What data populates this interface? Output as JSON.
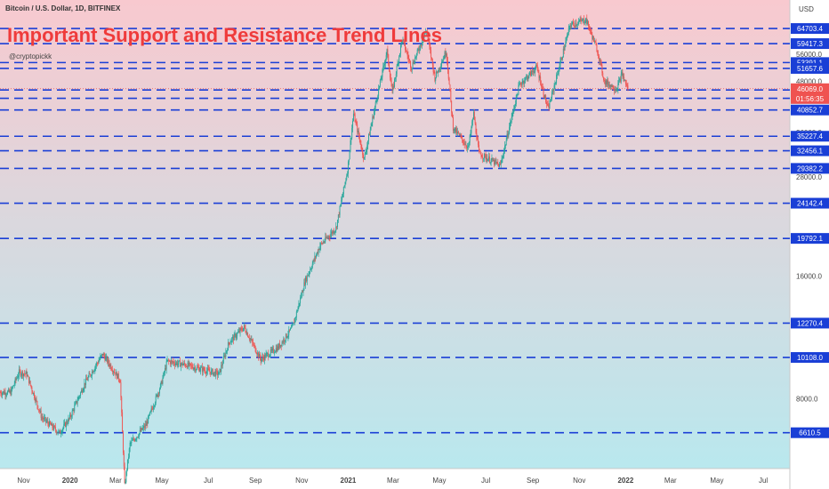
{
  "header": {
    "symbol": "Bitcoin / U.S. Dollar, 1D, BITFINEX",
    "headline": "Important Support and Resistance Trend Lines",
    "author": "@cryptopickk"
  },
  "colors": {
    "bg_top": "#f8c9cf",
    "bg_bottom": "#b9e8ee",
    "level_line": "#1a3fd6",
    "level_label_bg": "#1a3fd6",
    "current_label_bg": "#ef5350",
    "up_candle": "#26a69a",
    "down_candle": "#ef5350",
    "headline": "#ef3b3b"
  },
  "chart_data": {
    "type": "candlestick",
    "title": "Important Support and Resistance Trend Lines",
    "subtitle": "Bitcoin / U.S. Dollar, 1D, BITFINEX",
    "y_axis_unit": "USD",
    "y_scale": "log",
    "y_range": [
      5400,
      76000
    ],
    "x_range": [
      "2019-10-01",
      "2022-08-05"
    ],
    "y_ticks": [
      "64000.0",
      "56000.0",
      "48000.0",
      "36000.0",
      "28000.0",
      "16000.0",
      "8000.0"
    ],
    "y_tick_values": [
      64000,
      56000,
      48000,
      36000,
      28000,
      16000,
      8000
    ],
    "x_ticks": [
      {
        "label": "Nov",
        "date": "2019-11-01"
      },
      {
        "label": "2020",
        "date": "2020-01-01"
      },
      {
        "label": "Mar",
        "date": "2020-03-01"
      },
      {
        "label": "May",
        "date": "2020-05-01"
      },
      {
        "label": "Jul",
        "date": "2020-07-01"
      },
      {
        "label": "Sep",
        "date": "2020-09-01"
      },
      {
        "label": "Nov",
        "date": "2020-11-01"
      },
      {
        "label": "2021",
        "date": "2021-01-01"
      },
      {
        "label": "Mar",
        "date": "2021-03-01"
      },
      {
        "label": "May",
        "date": "2021-05-01"
      },
      {
        "label": "Jul",
        "date": "2021-07-01"
      },
      {
        "label": "Sep",
        "date": "2021-09-01"
      },
      {
        "label": "Nov",
        "date": "2021-11-01"
      },
      {
        "label": "2022",
        "date": "2022-01-01"
      },
      {
        "label": "Mar",
        "date": "2022-03-01"
      },
      {
        "label": "May",
        "date": "2022-05-01"
      },
      {
        "label": "Jul",
        "date": "2022-07-01"
      }
    ],
    "levels": [
      {
        "value": 64703.4,
        "label": "64703.4"
      },
      {
        "value": 59417.3,
        "label": "59417.3"
      },
      {
        "value": 53391.1,
        "label": "53391.1"
      },
      {
        "value": 51657.6,
        "label": "51657.6"
      },
      {
        "value": 45741.8,
        "label": "45741.8"
      },
      {
        "value": 43630.7,
        "label": "43630.7"
      },
      {
        "value": 40852.7,
        "label": "40852.7"
      },
      {
        "value": 35227.4,
        "label": "35227.4"
      },
      {
        "value": 32456.1,
        "label": "32456.1"
      },
      {
        "value": 29382.2,
        "label": "29382.2"
      },
      {
        "value": 24142.4,
        "label": "24142.4"
      },
      {
        "value": 19792.1,
        "label": "19792.1"
      },
      {
        "value": 12270.4,
        "label": "12270.4"
      },
      {
        "value": 10108.0,
        "label": "10108.0"
      },
      {
        "value": 6610.5,
        "label": "6610.5"
      }
    ],
    "current_price": {
      "value": 46069.0,
      "label": "46069.0",
      "countdown": "01:56:35"
    },
    "price_path": [
      [
        "2019-10-01",
        8300
      ],
      [
        "2019-10-15",
        8300
      ],
      [
        "2019-10-26",
        9300
      ],
      [
        "2019-11-05",
        9200
      ],
      [
        "2019-11-25",
        7200
      ],
      [
        "2019-12-18",
        6600
      ],
      [
        "2020-01-01",
        7200
      ],
      [
        "2020-01-20",
        8700
      ],
      [
        "2020-02-13",
        10300
      ],
      [
        "2020-03-07",
        8900
      ],
      [
        "2020-03-13",
        4900
      ],
      [
        "2020-03-20",
        6200
      ],
      [
        "2020-04-10",
        6900
      ],
      [
        "2020-04-30",
        8700
      ],
      [
        "2020-05-08",
        9900
      ],
      [
        "2020-06-01",
        9700
      ],
      [
        "2020-07-15",
        9200
      ],
      [
        "2020-07-28",
        11000
      ],
      [
        "2020-08-17",
        12000
      ],
      [
        "2020-09-08",
        10000
      ],
      [
        "2020-10-01",
        10700
      ],
      [
        "2020-10-20",
        12000
      ],
      [
        "2020-11-05",
        15500
      ],
      [
        "2020-11-25",
        19000
      ],
      [
        "2020-12-16",
        21000
      ],
      [
        "2020-12-31",
        29000
      ],
      [
        "2021-01-08",
        40000
      ],
      [
        "2021-01-22",
        31000
      ],
      [
        "2021-02-08",
        44000
      ],
      [
        "2021-02-21",
        57000
      ],
      [
        "2021-02-28",
        45000
      ],
      [
        "2021-03-13",
        61000
      ],
      [
        "2021-03-25",
        52000
      ],
      [
        "2021-04-14",
        64000
      ],
      [
        "2021-04-25",
        49000
      ],
      [
        "2021-05-10",
        57000
      ],
      [
        "2021-05-19",
        37000
      ],
      [
        "2021-06-08",
        33000
      ],
      [
        "2021-06-15",
        40000
      ],
      [
        "2021-06-22",
        32000
      ],
      [
        "2021-07-20",
        29800
      ],
      [
        "2021-08-14",
        47000
      ],
      [
        "2021-09-06",
        52000
      ],
      [
        "2021-09-21",
        41000
      ],
      [
        "2021-10-20",
        66000
      ],
      [
        "2021-11-10",
        68000
      ],
      [
        "2021-11-25",
        57000
      ],
      [
        "2021-12-04",
        48000
      ],
      [
        "2021-12-20",
        46000
      ],
      [
        "2021-12-27",
        50000
      ],
      [
        "2022-01-04",
        46069
      ]
    ],
    "grid": false,
    "legend": "none"
  }
}
